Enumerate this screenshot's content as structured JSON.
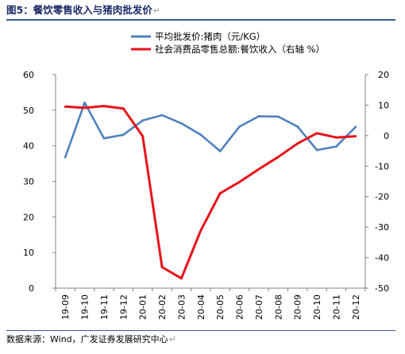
{
  "figure": {
    "title": "图5：餐饮零售收入与猪肉批发价",
    "source": "数据来源：Wind，广发证券发展研究中心"
  },
  "chart_data": {
    "type": "line",
    "categories": [
      "19-09",
      "19-10",
      "19-11",
      "19-12",
      "20-01",
      "20-02",
      "20-03",
      "20-04",
      "20-05",
      "20-06",
      "20-07",
      "20-08",
      "20-09",
      "20-10",
      "20-11",
      "20-12"
    ],
    "series": [
      {
        "name": "平均批发价:猪肉（元/KG）",
        "axis": "left",
        "color": "#4f81bd",
        "values": [
          36.8,
          52.1,
          42.1,
          43.1,
          47.1,
          48.6,
          46.3,
          43.1,
          38.5,
          45.4,
          48.3,
          48.2,
          45.4,
          38.8,
          39.8,
          45.3
        ]
      },
      {
        "name": "社会消费品零售总额:餐饮收入（右轴 %）",
        "axis": "right",
        "color": "#e8131a",
        "values": [
          9.5,
          9.1,
          9.7,
          8.9,
          -0.2,
          -43.1,
          -46.8,
          -31.1,
          -18.9,
          -15.2,
          -11.0,
          -7.0,
          -2.6,
          0.8,
          -0.6,
          -0.2
        ]
      }
    ],
    "y_left": {
      "min": 0,
      "max": 60,
      "ticks": [
        0,
        10,
        20,
        30,
        40,
        50,
        60
      ]
    },
    "y_right": {
      "min": -50,
      "max": 20,
      "ticks": [
        -50,
        -40,
        -30,
        -20,
        -10,
        0,
        10,
        20
      ]
    },
    "grid": false,
    "legend_position": "top"
  },
  "colors": {
    "title": "#1a2a66",
    "rule": "#3c5a9c"
  }
}
